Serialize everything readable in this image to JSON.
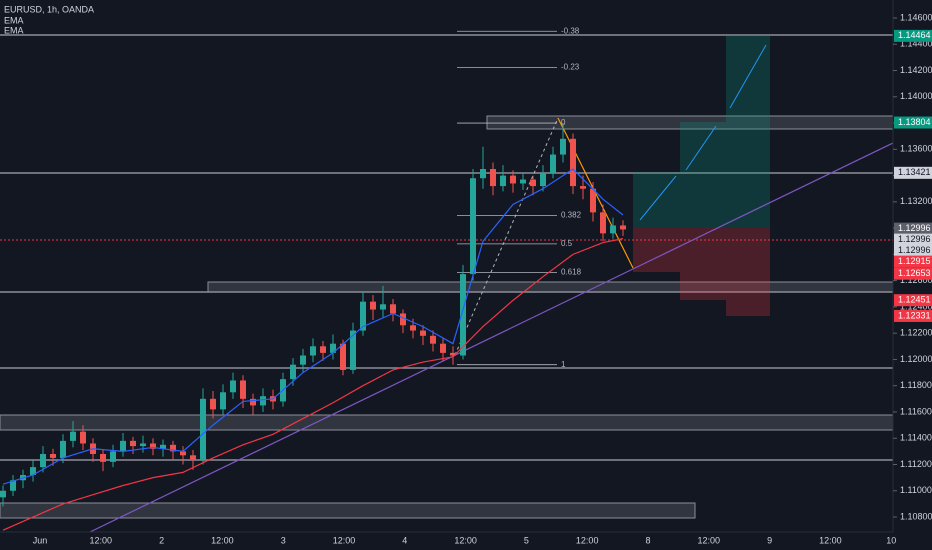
{
  "chart_data": {
    "type": "candlestick",
    "title": "EURUSD, 1h, OANDA",
    "indicators": [
      "EMA",
      "EMA"
    ],
    "ylim": [
      1.10686,
      1.14737
    ],
    "yticks": [
      {
        "value": 1.146,
        "label": "1.14600"
      },
      {
        "value": 1.144,
        "label": "1.14400"
      },
      {
        "value": 1.142,
        "label": "1.14200"
      },
      {
        "value": 1.14,
        "label": "1.14000"
      },
      {
        "value": 1.138,
        "label": "1.13800"
      },
      {
        "value": 1.136,
        "label": "1.13600"
      },
      {
        "value": 1.134,
        "label": "1.13400"
      },
      {
        "value": 1.132,
        "label": "1.13200"
      },
      {
        "value": 1.13,
        "label": "1.13000"
      },
      {
        "value": 1.128,
        "label": "1.12800"
      },
      {
        "value": 1.126,
        "label": "1.12600"
      },
      {
        "value": 1.124,
        "label": "1.12400"
      },
      {
        "value": 1.122,
        "label": "1.12200"
      },
      {
        "value": 1.12,
        "label": "1.12000"
      },
      {
        "value": 1.118,
        "label": "1.11800"
      },
      {
        "value": 1.116,
        "label": "1.11600"
      },
      {
        "value": 1.114,
        "label": "1.11400"
      },
      {
        "value": 1.112,
        "label": "1.11200"
      },
      {
        "value": 1.11,
        "label": "1.11000"
      },
      {
        "value": 1.108,
        "label": "1.10800"
      }
    ],
    "xticks": [
      "Jun",
      "12:00",
      "2",
      "12:00",
      "3",
      "12:00",
      "4",
      "12:00",
      "5",
      "12:00",
      "8",
      "12:00",
      "9",
      "12:00",
      "10"
    ],
    "price_labels": [
      {
        "value": 1.14464,
        "label": "1.14464",
        "color": "#089981"
      },
      {
        "value": 1.13804,
        "label": "1.13804",
        "color": "#089981"
      },
      {
        "value": 1.13421,
        "label": "1.13421",
        "color": "#d1d4dc"
      },
      {
        "value": 1.12996,
        "label": "1.12996",
        "color": "#5d606b"
      },
      {
        "value": 1.12996,
        "label": "1.12996",
        "color": "#d1d4dc"
      },
      {
        "value": 1.12996,
        "label": "1.12996",
        "color": "#d1d4dc"
      },
      {
        "value": 1.12915,
        "label": "1.12915",
        "color": "#f23645"
      },
      {
        "value": 1.12653,
        "label": "1.12653",
        "color": "#f23645"
      },
      {
        "value": 1.12451,
        "label": "1.12451",
        "color": "#f23645"
      },
      {
        "value": 1.12331,
        "label": "1.12331",
        "color": "#f23645"
      }
    ],
    "fib": {
      "high": 1.138,
      "low": 1.1196,
      "levels": [
        -0.38,
        -0.23,
        0,
        0.382,
        0.5,
        0.618,
        1
      ]
    },
    "up_color": "#26a69a",
    "down_color": "#ef5350",
    "candles": [
      [
        1.1095,
        1.1104,
        1.1088,
        1.11
      ],
      [
        1.11,
        1.1112,
        1.1096,
        1.1108
      ],
      [
        1.1108,
        1.1116,
        1.1102,
        1.1112
      ],
      [
        1.1112,
        1.1123,
        1.1107,
        1.1118
      ],
      [
        1.1118,
        1.1134,
        1.1114,
        1.1128
      ],
      [
        1.1128,
        1.1132,
        1.1119,
        1.1125
      ],
      [
        1.1125,
        1.1143,
        1.1121,
        1.1138
      ],
      [
        1.1138,
        1.1153,
        1.1133,
        1.1145
      ],
      [
        1.1145,
        1.115,
        1.1131,
        1.1136
      ],
      [
        1.1136,
        1.114,
        1.1122,
        1.1128
      ],
      [
        1.1128,
        1.1131,
        1.1115,
        1.1122
      ],
      [
        1.1122,
        1.1135,
        1.1118,
        1.113
      ],
      [
        1.113,
        1.1144,
        1.1126,
        1.1138
      ],
      [
        1.1138,
        1.1141,
        1.1128,
        1.1134
      ],
      [
        1.1134,
        1.1142,
        1.1129,
        1.1136
      ],
      [
        1.1136,
        1.114,
        1.1127,
        1.1132
      ],
      [
        1.1132,
        1.1139,
        1.1126,
        1.1135
      ],
      [
        1.1135,
        1.1138,
        1.1124,
        1.113
      ],
      [
        1.113,
        1.1134,
        1.112,
        1.1127
      ],
      [
        1.1127,
        1.1131,
        1.1116,
        1.1124
      ],
      [
        1.1124,
        1.1178,
        1.112,
        1.117
      ],
      [
        1.117,
        1.1176,
        1.1155,
        1.1162
      ],
      [
        1.1162,
        1.1181,
        1.1158,
        1.1175
      ],
      [
        1.1175,
        1.119,
        1.117,
        1.1184
      ],
      [
        1.1184,
        1.1188,
        1.1163,
        1.117
      ],
      [
        1.117,
        1.1174,
        1.1158,
        1.1165
      ],
      [
        1.1165,
        1.1178,
        1.116,
        1.1172
      ],
      [
        1.1172,
        1.1177,
        1.1162,
        1.1168
      ],
      [
        1.1168,
        1.119,
        1.1164,
        1.1185
      ],
      [
        1.1185,
        1.1201,
        1.118,
        1.1196
      ],
      [
        1.1196,
        1.1208,
        1.119,
        1.1203
      ],
      [
        1.1203,
        1.1216,
        1.1198,
        1.121
      ],
      [
        1.121,
        1.1214,
        1.1199,
        1.1205
      ],
      [
        1.1205,
        1.1219,
        1.12,
        1.1212
      ],
      [
        1.1212,
        1.1215,
        1.1188,
        1.1192
      ],
      [
        1.1192,
        1.1228,
        1.1189,
        1.1222
      ],
      [
        1.1222,
        1.1252,
        1.1218,
        1.1244
      ],
      [
        1.1244,
        1.1249,
        1.123,
        1.1238
      ],
      [
        1.1238,
        1.1256,
        1.1232,
        1.1242
      ],
      [
        1.1242,
        1.1246,
        1.1229,
        1.1235
      ],
      [
        1.1235,
        1.1238,
        1.122,
        1.1226
      ],
      [
        1.1226,
        1.1231,
        1.1216,
        1.1222
      ],
      [
        1.1222,
        1.1226,
        1.1211,
        1.1218
      ],
      [
        1.1218,
        1.1222,
        1.1206,
        1.1212
      ],
      [
        1.1212,
        1.1216,
        1.1199,
        1.1205
      ],
      [
        1.1205,
        1.121,
        1.1196,
        1.1203
      ],
      [
        1.1203,
        1.1272,
        1.12,
        1.1265
      ],
      [
        1.1265,
        1.1345,
        1.126,
        1.1338
      ],
      [
        1.1338,
        1.1362,
        1.133,
        1.1345
      ],
      [
        1.1345,
        1.135,
        1.1325,
        1.1332
      ],
      [
        1.1332,
        1.1348,
        1.1328,
        1.134
      ],
      [
        1.134,
        1.1344,
        1.1327,
        1.1334
      ],
      [
        1.1334,
        1.1342,
        1.1329,
        1.1337
      ],
      [
        1.1337,
        1.134,
        1.1325,
        1.1332
      ],
      [
        1.1332,
        1.1348,
        1.1328,
        1.1342
      ],
      [
        1.1342,
        1.1362,
        1.1338,
        1.1356
      ],
      [
        1.1356,
        1.138,
        1.135,
        1.1368
      ],
      [
        1.1368,
        1.1372,
        1.1326,
        1.1332
      ],
      [
        1.1332,
        1.134,
        1.1322,
        1.133
      ],
      [
        1.133,
        1.1335,
        1.1305,
        1.1312
      ],
      [
        1.1312,
        1.1318,
        1.129,
        1.1296
      ],
      [
        1.1296,
        1.1308,
        1.1292,
        1.1302
      ],
      [
        1.1302,
        1.1306,
        1.1294,
        1.1299
      ]
    ],
    "series": [
      {
        "name": "EMA",
        "color": "#2962ff",
        "x": [
          0,
          3,
          6,
          9,
          12,
          15,
          18,
          21,
          24,
          27,
          30,
          33,
          36,
          39,
          42,
          45,
          48,
          51,
          54,
          57,
          60,
          62
        ],
        "values": [
          1.1105,
          1.1112,
          1.1125,
          1.1132,
          1.113,
          1.1133,
          1.113,
          1.115,
          1.1168,
          1.117,
          1.119,
          1.1205,
          1.1225,
          1.1235,
          1.1225,
          1.1212,
          1.129,
          1.1318,
          1.133,
          1.1345,
          1.1322,
          1.131
        ]
      },
      {
        "name": "EMA",
        "color": "#f23645",
        "x": [
          0,
          3,
          6,
          9,
          12,
          15,
          18,
          21,
          24,
          27,
          30,
          33,
          36,
          39,
          42,
          45,
          48,
          51,
          54,
          57,
          60,
          62
        ],
        "values": [
          1.107,
          1.108,
          1.109,
          1.1097,
          1.1104,
          1.111,
          1.1114,
          1.1125,
          1.1135,
          1.1143,
          1.1155,
          1.1167,
          1.118,
          1.1192,
          1.1198,
          1.1202,
          1.1225,
          1.1245,
          1.1263,
          1.128,
          1.1289,
          1.1292
        ]
      }
    ]
  }
}
